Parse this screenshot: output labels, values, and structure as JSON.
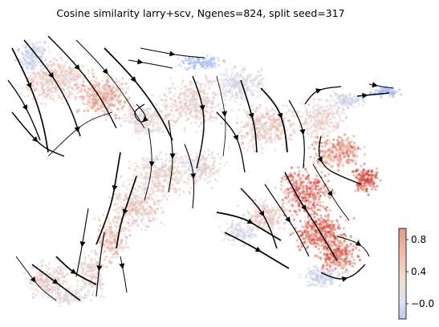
{
  "chart_data": {
    "type": "scatter",
    "subtype": "embedding-streamplot",
    "title": "Cosine similarity larry+scv, Ngenes=824, split seed=317",
    "axes_visible": false,
    "grid": false,
    "point_color_encoding": "cosine similarity",
    "colormap": "coolwarm",
    "colormap_colors": [
      "#4a6cf0",
      "#dde5f4",
      "#f1c3ad",
      "#d0322c"
    ],
    "overlay": "velocity streamlines (black, with arrowheads)",
    "colorbar": {
      "placement": "bottom-right",
      "range": [
        -0.2,
        0.95
      ],
      "ticks": [
        -0.0,
        0.4,
        0.8
      ],
      "tick_labels": [
        "−0.0",
        "0.4",
        "0.8"
      ]
    }
  }
}
